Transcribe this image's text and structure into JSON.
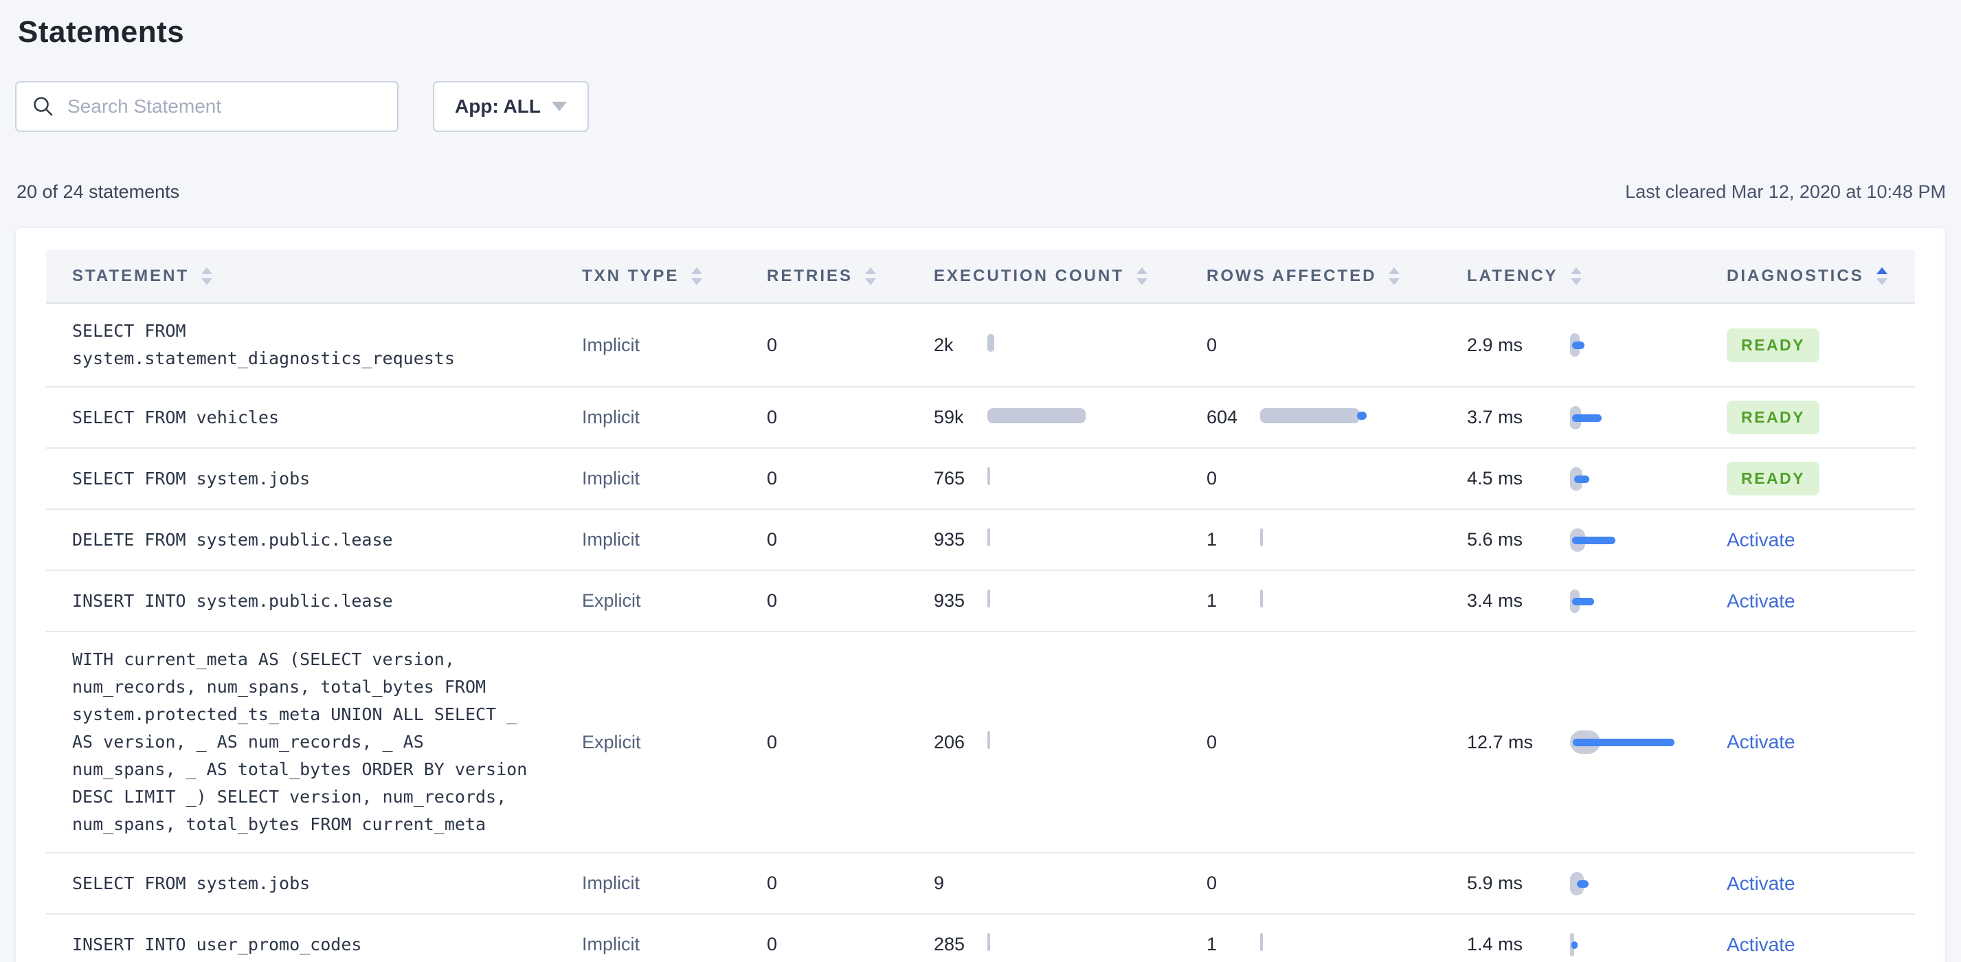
{
  "page": {
    "title": "Statements"
  },
  "toolbar": {
    "search_placeholder": "Search Statement",
    "search_value": "",
    "app_filter_label": "App: ALL"
  },
  "meta": {
    "count_text": "20 of 24 statements",
    "last_cleared": "Last cleared Mar 12, 2020 at 10:48 PM"
  },
  "colors": {
    "accent_blue": "#4285f4",
    "link_blue": "#3e6bd6",
    "bar_gray": "#c5cada",
    "badge_bg": "#def2d6",
    "badge_text": "#50a028",
    "sort_active": "#3b6ce8",
    "sort_idle": "#c3cbdd"
  },
  "table": {
    "columns": [
      {
        "label": "STATEMENT",
        "sort": "none"
      },
      {
        "label": "TXN TYPE",
        "sort": "none"
      },
      {
        "label": "RETRIES",
        "sort": "none"
      },
      {
        "label": "EXECUTION COUNT",
        "sort": "none"
      },
      {
        "label": "ROWS AFFECTED",
        "sort": "none"
      },
      {
        "label": "LATENCY",
        "sort": "none"
      },
      {
        "label": "DIAGNOSTICS",
        "sort": "asc"
      }
    ],
    "rows": [
      {
        "statement": "SELECT FROM system.statement_diagnostics_requests",
        "txn_type": "Implicit",
        "retries": "0",
        "execution_count": "2k",
        "exec_bar": {
          "w": 10,
          "h": 26
        },
        "rows_affected": "0",
        "rows_bar": {
          "w": 0,
          "h": 0,
          "dot": false
        },
        "latency": "2.9 ms",
        "latency_bar": {
          "gray": 14,
          "blue": 18,
          "off": 3
        },
        "diagnostics": {
          "type": "badge",
          "label": "READY"
        }
      },
      {
        "statement": "SELECT FROM vehicles",
        "txn_type": "Implicit",
        "retries": "0",
        "execution_count": "59k",
        "exec_bar": {
          "w": 143,
          "h": 22
        },
        "rows_affected": "604",
        "rows_bar": {
          "w": 145,
          "h": 22,
          "dot": true
        },
        "latency": "3.7 ms",
        "latency_bar": {
          "gray": 16,
          "blue": 43,
          "off": 3
        },
        "diagnostics": {
          "type": "badge",
          "label": "READY"
        }
      },
      {
        "statement": "SELECT FROM system.jobs",
        "txn_type": "Implicit",
        "retries": "0",
        "execution_count": "765",
        "exec_bar": {
          "w": 4,
          "h": 26
        },
        "rows_affected": "0",
        "rows_bar": {
          "w": 0,
          "h": 0,
          "dot": false
        },
        "latency": "4.5 ms",
        "latency_bar": {
          "gray": 18,
          "blue": 22,
          "off": 6
        },
        "diagnostics": {
          "type": "badge",
          "label": "READY"
        }
      },
      {
        "statement": "DELETE FROM system.public.lease",
        "txn_type": "Implicit",
        "retries": "0",
        "execution_count": "935",
        "exec_bar": {
          "w": 4,
          "h": 26
        },
        "rows_affected": "1",
        "rows_bar": {
          "w": 4,
          "h": 26,
          "dot": false
        },
        "latency": "5.6 ms",
        "latency_bar": {
          "gray": 22,
          "blue": 63,
          "off": 3
        },
        "diagnostics": {
          "type": "link",
          "label": "Activate"
        }
      },
      {
        "statement": "INSERT INTO system.public.lease",
        "txn_type": "Explicit",
        "retries": "0",
        "execution_count": "935",
        "exec_bar": {
          "w": 4,
          "h": 26
        },
        "rows_affected": "1",
        "rows_bar": {
          "w": 4,
          "h": 26,
          "dot": false
        },
        "latency": "3.4 ms",
        "latency_bar": {
          "gray": 14,
          "blue": 32,
          "off": 3
        },
        "diagnostics": {
          "type": "link",
          "label": "Activate"
        }
      },
      {
        "statement": "WITH current_meta AS (SELECT version, num_records, num_spans, total_bytes FROM system.protected_ts_meta UNION ALL SELECT _ AS version, _ AS num_records, _ AS num_spans, _ AS total_bytes ORDER BY version DESC LIMIT _) SELECT version, num_records, num_spans, total_bytes FROM current_meta",
        "txn_type": "Explicit",
        "retries": "0",
        "execution_count": "206",
        "exec_bar": {
          "w": 4,
          "h": 26
        },
        "rows_affected": "0",
        "rows_bar": {
          "w": 0,
          "h": 0,
          "dot": false
        },
        "latency": "12.7 ms",
        "latency_bar": {
          "gray": 44,
          "blue": 148,
          "off": 4
        },
        "diagnostics": {
          "type": "link",
          "label": "Activate"
        }
      },
      {
        "statement": "SELECT FROM system.jobs",
        "txn_type": "Implicit",
        "retries": "0",
        "execution_count": "9",
        "exec_bar": {
          "w": 0,
          "h": 0
        },
        "rows_affected": "0",
        "rows_bar": {
          "w": 0,
          "h": 0,
          "dot": false
        },
        "latency": "5.9 ms",
        "latency_bar": {
          "gray": 20,
          "blue": 17,
          "off": 10
        },
        "diagnostics": {
          "type": "link",
          "label": "Activate"
        }
      },
      {
        "statement": "INSERT INTO user_promo_codes",
        "txn_type": "Implicit",
        "retries": "0",
        "execution_count": "285",
        "exec_bar": {
          "w": 4,
          "h": 26
        },
        "rows_affected": "1",
        "rows_bar": {
          "w": 4,
          "h": 26,
          "dot": false
        },
        "latency": "1.4 ms",
        "latency_bar": {
          "gray": 6,
          "blue": 9,
          "off": 2
        },
        "diagnostics": {
          "type": "link",
          "label": "Activate"
        }
      }
    ]
  }
}
